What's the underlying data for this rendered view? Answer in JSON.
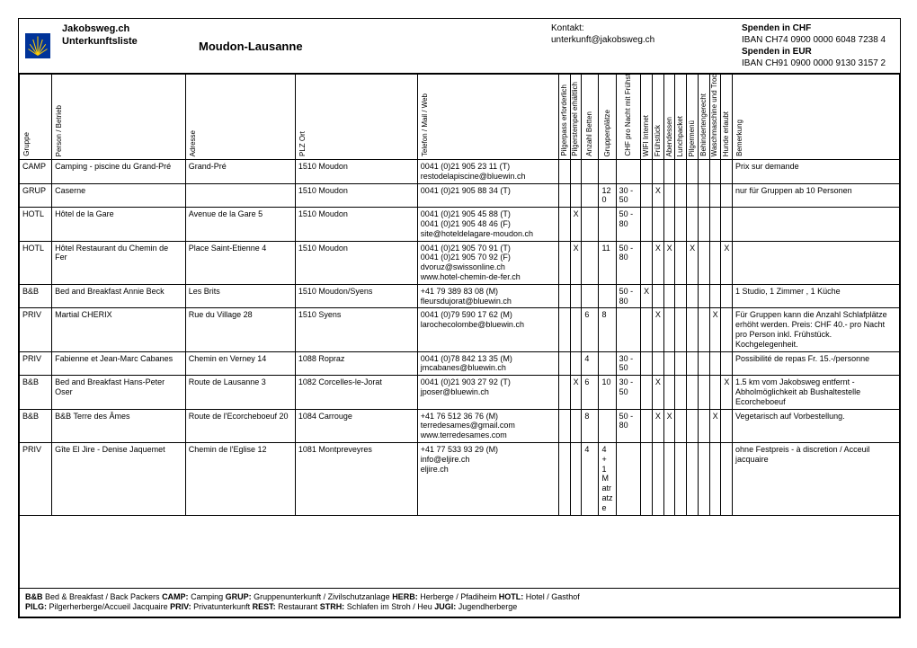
{
  "header": {
    "site": "Jakobsweg.ch",
    "list": "Unterkunftsliste",
    "route": "Moudon-Lausanne",
    "contact_label": "Kontakt:",
    "contact_email": "unterkunft@jakobsweg.ch",
    "donation_chf_label": "Spenden in CHF",
    "donation_chf_iban": "IBAN CH74 0900 0000 6048 7238 4",
    "donation_eur_label": "Spenden in EUR",
    "donation_eur_iban": "IBAN CH91 0900 0000 9130 3157 2"
  },
  "cols": {
    "group": "Gruppe",
    "name": "Person / Betrieb",
    "addr": "Adresse",
    "plz": "PLZ Ort",
    "tel": "Telefon / Mail / Web",
    "c1": "Pilgerpass erforderlich",
    "c2": "Pilgerstempel erhältlich",
    "c3": "Anzahl Betten",
    "c4": "Gruppenplätze",
    "c5": "CHF pro Nacht mit Frühstück",
    "c6": "WIFI Internet",
    "c7": "Frühstück",
    "c8": "Abendessen",
    "c9": "Lunchpacket",
    "c10": "Pilgermenü",
    "c11": "Behindertengerecht",
    "c12": "Waschmaschine und Trockner",
    "c13": "Hunde erlaubt",
    "remark": "Bemerkung"
  },
  "rows": [
    {
      "group": "CAMP",
      "name": "Camping - piscine  du Grand-Pré",
      "addr": "Grand-Pré",
      "plz": "1510 Moudon",
      "tel": "0041 (0)21 905 23 11 (T)\nrestodelapiscine@bluewin.ch",
      "c": [
        "",
        "",
        "",
        "",
        "",
        "",
        "",
        "",
        "",
        "",
        "",
        "",
        ""
      ],
      "remark": "Prix sur demande"
    },
    {
      "group": "GRUP",
      "name": "Caserne",
      "addr": "",
      "plz": "1510 Moudon",
      "tel": "0041 (0)21 905 88 34 (T)",
      "c": [
        "",
        "",
        "",
        "120",
        "30 - 50",
        "",
        "X",
        "",
        "",
        "",
        "",
        "",
        ""
      ],
      "remark": "nur für Gruppen ab 10 Personen"
    },
    {
      "group": "HOTL",
      "name": "Hôtel  de la Gare",
      "addr": "Avenue de la Gare 5",
      "plz": "1510 Moudon",
      "tel": "0041 (0)21 905 45 88 (T)\n0041 (0)21 905 48 46 (F)\nsite@hoteldelagare-moudon.ch",
      "c": [
        "",
        "X",
        "",
        "",
        "50 - 80",
        "",
        "",
        "",
        "",
        "",
        "",
        "",
        ""
      ],
      "remark": ""
    },
    {
      "group": "HOTL",
      "name": "Hôtel Restaurant du Chemin de Fer",
      "addr": "Place Saint-Etienne 4",
      "plz": "1510 Moudon",
      "tel": "0041 (0)21 905 70 91 (T)\n0041 (0)21 905 70 92 (F)\ndvoruz@swissonline.ch\nwww.hotel-chemin-de-fer.ch",
      "c": [
        "",
        "X",
        "",
        "11",
        "50 - 80",
        "",
        "X",
        "X",
        "",
        "X",
        "",
        "",
        "X"
      ],
      "remark": ""
    },
    {
      "group": "B&B",
      "name": "Bed and Breakfast Annie Beck",
      "addr": "Les Brits",
      "plz": "1510 Moudon/Syens",
      "tel": "+41 79 389 83 08 (M)\nfleursdujorat@bluewin.ch",
      "c": [
        "",
        "",
        "",
        "",
        "50 - 80",
        "X",
        "",
        "",
        "",
        "",
        "",
        "",
        ""
      ],
      "remark": "1 Studio, 1 Zimmer , 1 Küche"
    },
    {
      "group": "PRIV",
      "name": "Martial CHERIX",
      "addr": "Rue du Village 28",
      "plz": "1510 Syens",
      "tel": "0041 (0)79 590 17 62 (M)\nlarochecolombe@bluewin.ch",
      "c": [
        "",
        "",
        "6",
        "8",
        "",
        "",
        "X",
        "",
        "",
        "",
        "",
        "X",
        ""
      ],
      "remark": "Für Gruppen kann die Anzahl Schlafplätze erhöht werden. Preis: CHF 40.- pro Nacht pro Person inkl. Frühstück. Kochgelegenheit."
    },
    {
      "group": "PRIV",
      "name": "Fabienne et Jean-Marc Cabanes",
      "addr": "Chemin en Verney 14",
      "plz": "1088 Ropraz",
      "tel": "0041 (0)78 842 13 35 (M)\njmcabanes@bluewin.ch",
      "c": [
        "",
        "",
        "4",
        "",
        "30 - 50",
        "",
        "",
        "",
        "",
        "",
        "",
        "",
        ""
      ],
      "remark": "Possibilité de repas Fr. 15.-/personne"
    },
    {
      "group": "B&B",
      "name": "Bed and Breakfast Hans-Peter Oser",
      "addr": "Route de Lausanne 3",
      "plz": "1082 Corcelles-le-Jorat",
      "tel": "0041 (0)21 903 27 92 (T)\njposer@bluewin.ch",
      "c": [
        "",
        "X",
        "6",
        "10",
        "30 - 50",
        "",
        "X",
        "",
        "",
        "",
        "",
        "",
        "X"
      ],
      "remark": "1.5 km vom Jakobsweg entfernt - Abholmöglichkeit ab Bushaltestelle Ecorcheboeuf"
    },
    {
      "group": "B&B",
      "name": "B&B Terre des Âmes",
      "addr": "Route de l'Ecorcheboeuf 20",
      "plz": "1084 Carrouge",
      "tel": "+41 76 512 36 76 (M)\nterredesames@gmail.com\nwww.terredesames.com",
      "c": [
        "",
        "",
        "8",
        "",
        "50 - 80",
        "",
        "X",
        "X",
        "",
        "",
        "",
        "X",
        ""
      ],
      "remark": "Vegetarisch auf Vorbestellung."
    },
    {
      "group": "PRIV",
      "name": "Gîte El Jire - Denise Jaquemet",
      "addr": "Chemin de l'Eglise 12",
      "plz": "1081 Montpreveyres",
      "tel": "+41 77 533 93 29 (M)\ninfo@eljire.ch\neljire.ch",
      "c": [
        "",
        "",
        "4",
        "4 + 1 Matratze",
        "",
        "",
        "",
        "",
        "",
        "",
        "",
        "",
        ""
      ],
      "remark": "ohne Festpreis - à discretion / Acceuil jacquaire"
    }
  ],
  "legend": {
    "l1a": "B&B",
    "l1at": " Bed & Breakfast  / Back Packers ",
    "l1b": "CAMP:",
    "l1bt": " Camping ",
    "l1c": "GRUP:",
    "l1ct": " Gruppenunterkunft / Zivilschutzanlage ",
    "l1d": "HERB:",
    "l1dt": " Herberge / Pfadiheim ",
    "l1e": "HOTL:",
    "l1et": " Hotel / Gasthof",
    "l2a": "PILG:",
    "l2at": " Pilgerherberge/Accueil Jacquaire ",
    "l2b": "PRIV:",
    "l2bt": " Privatunterkunft  ",
    "l2c": "REST:",
    "l2ct": " Restaurant ",
    "l2d": "STRH:",
    "l2dt": " Schlafen im Stroh / Heu ",
    "l2e": "JUGI:",
    "l2et": " Jugendherberge"
  }
}
